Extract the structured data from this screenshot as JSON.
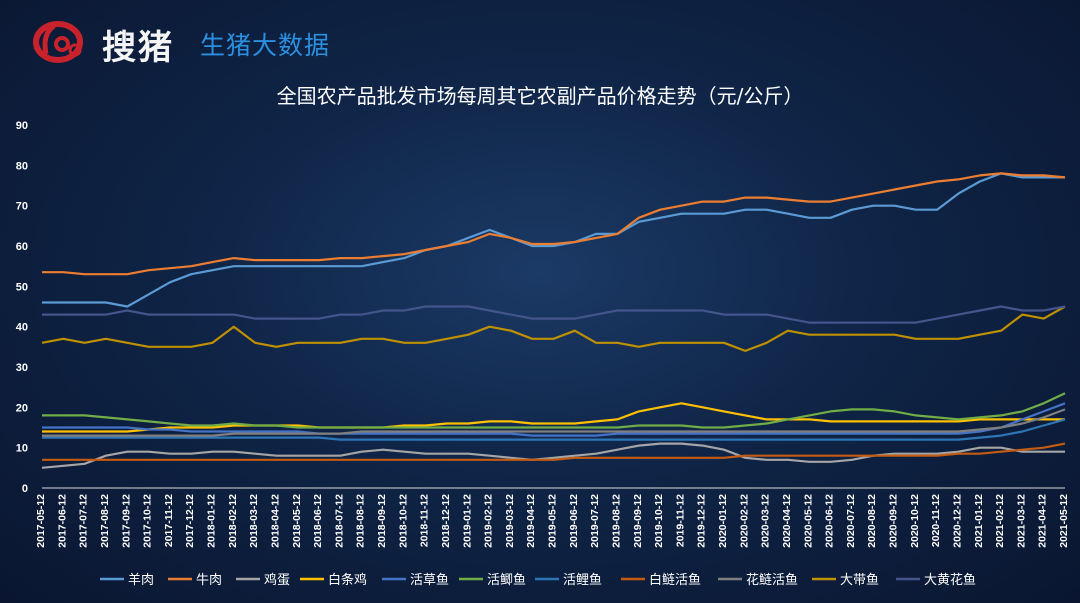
{
  "brand": {
    "logo_text": "搜猪",
    "sub_text": "生猪大数据",
    "logo_color": "#c8232c",
    "sub_color": "#2b8fe0"
  },
  "chart_data": {
    "type": "line",
    "title": "全国农产品批发市场每周其它农副产品价格走势（元/公斤）",
    "xlabel": "",
    "ylabel": "",
    "ylim": [
      0,
      90
    ],
    "yticks": [
      0,
      10,
      20,
      30,
      40,
      50,
      60,
      70,
      80,
      90
    ],
    "legend_position": "bottom",
    "grid": false,
    "x": [
      "2017-05-12",
      "2017-06-12",
      "2017-07-12",
      "2017-08-12",
      "2017-09-12",
      "2017-10-12",
      "2017-11-12",
      "2017-12-12",
      "2018-01-12",
      "2018-02-12",
      "2018-03-12",
      "2018-04-12",
      "2018-05-12",
      "2018-06-12",
      "2018-07-12",
      "2018-08-12",
      "2018-09-12",
      "2018-10-12",
      "2018-11-12",
      "2018-12-12",
      "2019-01-12",
      "2019-02-12",
      "2019-03-12",
      "2019-04-12",
      "2019-05-12",
      "2019-06-12",
      "2019-07-12",
      "2019-08-12",
      "2019-09-12",
      "2019-10-12",
      "2019-11-12",
      "2019-12-12",
      "2020-01-12",
      "2020-02-12",
      "2020-03-12",
      "2020-04-12",
      "2020-05-12",
      "2020-06-12",
      "2020-07-12",
      "2020-08-12",
      "2020-09-12",
      "2020-10-12",
      "2020-11-12",
      "2020-12-12",
      "2021-01-12",
      "2021-02-12",
      "2021-03-12",
      "2021-04-12",
      "2021-05-12"
    ],
    "series": [
      {
        "name": "羊肉",
        "color": "#5b9bd5",
        "values": [
          46,
          46,
          46,
          46,
          45,
          48,
          51,
          53,
          54,
          55,
          55,
          55,
          55,
          55,
          55,
          55,
          56,
          57,
          59,
          60,
          62,
          64,
          62,
          60,
          60,
          61,
          63,
          63,
          66,
          67,
          68,
          68,
          68,
          69,
          69,
          68,
          67,
          67,
          69,
          70,
          70,
          69,
          69,
          73,
          76,
          78,
          77,
          77,
          77
        ]
      },
      {
        "name": "牛肉",
        "color": "#ed7d31",
        "values": [
          53.5,
          53.5,
          53,
          53,
          53,
          54,
          54.5,
          55,
          56,
          57,
          56.5,
          56.5,
          56.5,
          56.5,
          57,
          57,
          57.5,
          58,
          59,
          60,
          61,
          63,
          62,
          60.5,
          60.5,
          61,
          62,
          63,
          67,
          69,
          70,
          71,
          71,
          72,
          72,
          71.5,
          71,
          71,
          72,
          73,
          74,
          75,
          76,
          76.5,
          77.5,
          78,
          77.5,
          77.5,
          77
        ]
      },
      {
        "name": "鸡蛋",
        "color": "#a5a5a5",
        "values": [
          5,
          5.5,
          6,
          8,
          9,
          9,
          8.5,
          8.5,
          9,
          9,
          8.5,
          8,
          8,
          8,
          8,
          9,
          9.5,
          9,
          8.5,
          8.5,
          8.5,
          8,
          7.5,
          7,
          7.5,
          8,
          8.5,
          9.5,
          10.5,
          11,
          11,
          10.5,
          9.5,
          7.5,
          7,
          7,
          6.5,
          6.5,
          7,
          8,
          8.5,
          8.5,
          8.5,
          9,
          10,
          10,
          9,
          9,
          9
        ]
      },
      {
        "name": "白条鸡",
        "color": "#ffc000",
        "values": [
          14,
          14,
          14,
          14,
          14,
          14.5,
          15,
          15,
          15,
          15.5,
          15.5,
          15.5,
          15.5,
          15,
          15,
          15,
          15,
          15.5,
          15.5,
          16,
          16,
          16.5,
          16.5,
          16,
          16,
          16,
          16.5,
          17,
          19,
          20,
          21,
          20,
          19,
          18,
          17,
          17,
          17,
          16.5,
          16.5,
          16.5,
          16.5,
          16.5,
          16.5,
          16.5,
          17,
          17,
          17,
          17,
          17
        ]
      },
      {
        "name": "活草鱼",
        "color": "#4472c4",
        "values": [
          15,
          15,
          15,
          15,
          15,
          14.5,
          14.5,
          14,
          14,
          14,
          14,
          14,
          14,
          13.5,
          13.5,
          13.5,
          13.5,
          13.5,
          13.5,
          13.5,
          13.5,
          13.5,
          13.5,
          13,
          13,
          13,
          13,
          13.5,
          13.5,
          13.5,
          13.5,
          13.5,
          13.5,
          13.5,
          13.5,
          13.5,
          13.5,
          13.5,
          13.5,
          13.5,
          13.5,
          13.5,
          13.5,
          13.5,
          14,
          15,
          17,
          19,
          21
        ]
      },
      {
        "name": "活鲫鱼",
        "color": "#70ad47",
        "values": [
          18,
          18,
          18,
          17.5,
          17,
          16.5,
          16,
          15.5,
          15.5,
          16,
          15.5,
          15.5,
          15,
          15,
          15,
          15,
          15,
          15,
          15,
          15,
          15,
          15,
          15,
          15,
          15,
          15,
          15,
          15,
          15.5,
          15.5,
          15.5,
          15,
          15,
          15.5,
          16,
          17,
          18,
          19,
          19.5,
          19.5,
          19,
          18,
          17.5,
          17,
          17.5,
          18,
          19,
          21,
          23.5
        ]
      },
      {
        "name": "活鲤鱼",
        "color": "#2e75b6",
        "values": [
          12.5,
          12.5,
          12.5,
          12.5,
          12.5,
          12.5,
          12.5,
          12.5,
          12.5,
          12.5,
          12.5,
          12.5,
          12.5,
          12.5,
          12,
          12,
          12,
          12,
          12,
          12,
          12,
          12,
          12,
          12,
          12,
          12,
          12,
          12,
          12,
          12,
          12,
          12,
          12,
          12,
          12,
          12,
          12,
          12,
          12,
          12,
          12,
          12,
          12,
          12,
          12.5,
          13,
          14,
          15.5,
          17
        ]
      },
      {
        "name": "白鲢活鱼",
        "color": "#c55a11",
        "values": [
          7,
          7,
          7,
          7,
          7,
          7,
          7,
          7,
          7,
          7,
          7,
          7,
          7,
          7,
          7,
          7,
          7,
          7,
          7,
          7,
          7,
          7,
          7,
          7,
          7,
          7.5,
          7.5,
          7.5,
          7.5,
          7.5,
          7.5,
          7.5,
          7.5,
          8,
          8,
          8,
          8,
          8,
          8,
          8,
          8,
          8,
          8,
          8.5,
          8.5,
          9,
          9.5,
          10,
          11
        ]
      },
      {
        "name": "花鲢活鱼",
        "color": "#7f7f7f",
        "values": [
          13,
          13,
          13,
          13,
          13,
          13,
          13,
          13,
          13,
          13.5,
          13.5,
          13.5,
          13.5,
          13.5,
          13.5,
          14,
          14,
          14,
          14,
          14,
          14,
          14,
          14,
          14,
          14,
          14,
          14,
          14,
          14,
          14,
          14,
          14,
          14,
          14,
          14,
          14,
          14,
          14,
          14,
          14,
          14,
          14,
          14,
          14,
          14.5,
          15,
          16,
          17.5,
          19.5
        ]
      },
      {
        "name": "大带鱼",
        "color": "#bf9000",
        "values": [
          36,
          37,
          36,
          37,
          36,
          35,
          35,
          35,
          36,
          40,
          36,
          35,
          36,
          36,
          36,
          37,
          37,
          36,
          36,
          37,
          38,
          40,
          39,
          37,
          37,
          39,
          36,
          36,
          35,
          36,
          36,
          36,
          36,
          34,
          36,
          39,
          38,
          38,
          38,
          38,
          38,
          37,
          37,
          37,
          38,
          39,
          43,
          42,
          45
        ]
      },
      {
        "name": "大黄花鱼",
        "color": "#44548c",
        "values": [
          43,
          43,
          43,
          43,
          44,
          43,
          43,
          43,
          43,
          43,
          42,
          42,
          42,
          42,
          43,
          43,
          44,
          44,
          45,
          45,
          45,
          44,
          43,
          42,
          42,
          42,
          43,
          44,
          44,
          44,
          44,
          44,
          43,
          43,
          43,
          42,
          41,
          41,
          41,
          41,
          41,
          41,
          42,
          43,
          44,
          45,
          44,
          44,
          45
        ]
      }
    ]
  }
}
